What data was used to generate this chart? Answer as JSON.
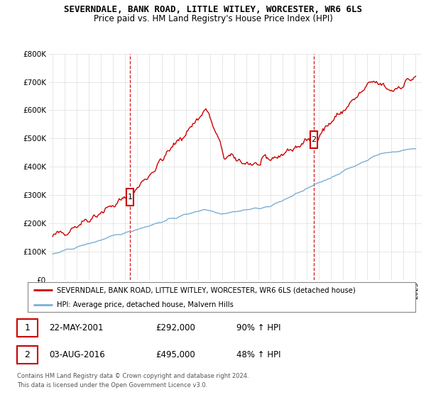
{
  "title": "SEVERNDALE, BANK ROAD, LITTLE WITLEY, WORCESTER, WR6 6LS",
  "subtitle": "Price paid vs. HM Land Registry's House Price Index (HPI)",
  "ylim": [
    0,
    800000
  ],
  "yticks": [
    0,
    100000,
    200000,
    300000,
    400000,
    500000,
    600000,
    700000,
    800000
  ],
  "ytick_labels": [
    "£0",
    "£100K",
    "£200K",
    "£300K",
    "£400K",
    "£500K",
    "£600K",
    "£700K",
    "£800K"
  ],
  "xlim_start": 1994.7,
  "xlim_end": 2025.5,
  "marker1_x": 2001.388,
  "marker1_y": 292000,
  "marker2_x": 2016.583,
  "marker2_y": 495000,
  "red_line_color": "#cc0000",
  "blue_line_color": "#7bafd4",
  "marker_box_color": "#cc0000",
  "legend_red_label": "SEVERNDALE, BANK ROAD, LITTLE WITLEY, WORCESTER, WR6 6LS (detached house)",
  "legend_blue_label": "HPI: Average price, detached house, Malvern Hills",
  "table_row1": [
    "1",
    "22-MAY-2001",
    "£292,000",
    "90% ↑ HPI"
  ],
  "table_row2": [
    "2",
    "03-AUG-2016",
    "£495,000",
    "48% ↑ HPI"
  ],
  "footer1": "Contains HM Land Registry data © Crown copyright and database right 2024.",
  "footer2": "This data is licensed under the Open Government Licence v3.0.",
  "bg_color": "#ffffff",
  "grid_color": "#dddddd"
}
